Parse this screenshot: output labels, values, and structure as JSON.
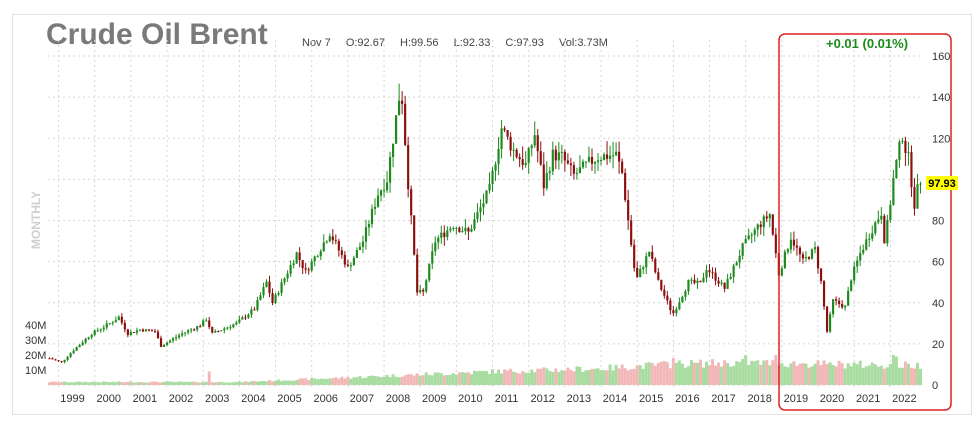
{
  "header": {
    "title": "Crude Oil Brent",
    "date": "Nov 7",
    "open": "O:92.67",
    "high": "H:99.56",
    "low": "L:92.33",
    "close": "C:97.93",
    "volume": "Vol:3.73M",
    "change": "+0.01 (0.01%)"
  },
  "period_label": "MONTHLY",
  "last_price_label": "97.93",
  "colors": {
    "up": "#1e8a1e",
    "down": "#8b0f0f",
    "volume_up": "#a8dca0",
    "volume_down": "#f2b8b8",
    "change": "#1a8a1a",
    "highlight_box": "#e02020",
    "last_price_bg": "#ffff00",
    "grid": "#d6d6d6"
  },
  "chart_data": {
    "type": "candlestick",
    "interval": "monthly",
    "ylim": [
      0,
      160
    ],
    "y_ticks": [
      0,
      20,
      40,
      60,
      80,
      100,
      120,
      140,
      160
    ],
    "volume_ticks": [
      "10M",
      "20M",
      "30M",
      "40M"
    ],
    "volume_tick_values": [
      10,
      20,
      30,
      40
    ],
    "x_ticks": [
      "1999",
      "2000",
      "2001",
      "2002",
      "2003",
      "2004",
      "2005",
      "2006",
      "2007",
      "2008",
      "2009",
      "2010",
      "2011",
      "2012",
      "2013",
      "2014",
      "2015",
      "2016",
      "2017",
      "2018",
      "2019",
      "2020",
      "2021",
      "2022"
    ],
    "x_tick_years": [
      1999,
      2000,
      2001,
      2002,
      2003,
      2004,
      2005,
      2006,
      2007,
      2008,
      2009,
      2010,
      2011,
      2012,
      2013,
      2014,
      2015,
      2016,
      2017,
      2018,
      2019,
      2020,
      2021,
      2022
    ],
    "start": "1998-10",
    "end": "2022-11",
    "close_anchors": [
      [
        "1998-10",
        13
      ],
      [
        "1999-02",
        11
      ],
      [
        "1999-06",
        17
      ],
      [
        "1999-12",
        25
      ],
      [
        "2000-06",
        30
      ],
      [
        "2000-09",
        33
      ],
      [
        "2000-12",
        25
      ],
      [
        "2001-04",
        27
      ],
      [
        "2001-09",
        26
      ],
      [
        "2001-11",
        19
      ],
      [
        "2002-06",
        25
      ],
      [
        "2002-12",
        29
      ],
      [
        "2003-02",
        32
      ],
      [
        "2003-04",
        25
      ],
      [
        "2003-12",
        30
      ],
      [
        "2004-06",
        37
      ],
      [
        "2004-10",
        50
      ],
      [
        "2004-12",
        40
      ],
      [
        "2005-08",
        64
      ],
      [
        "2005-11",
        55
      ],
      [
        "2006-07",
        74
      ],
      [
        "2006-12",
        60
      ],
      [
        "2007-01",
        57
      ],
      [
        "2007-06",
        70
      ],
      [
        "2007-11",
        93
      ],
      [
        "2008-02",
        100
      ],
      [
        "2008-06",
        140
      ],
      [
        "2008-07",
        139
      ],
      [
        "2008-09",
        98
      ],
      [
        "2008-12",
        45
      ],
      [
        "2009-02",
        45
      ],
      [
        "2009-06",
        70
      ],
      [
        "2009-12",
        78
      ],
      [
        "2010-05",
        74
      ],
      [
        "2010-12",
        95
      ],
      [
        "2011-04",
        125
      ],
      [
        "2011-08",
        114
      ],
      [
        "2011-12",
        107
      ],
      [
        "2012-03",
        122
      ],
      [
        "2012-06",
        97
      ],
      [
        "2012-09",
        112
      ],
      [
        "2012-12",
        111
      ],
      [
        "2013-04",
        102
      ],
      [
        "2013-09",
        108
      ],
      [
        "2013-12",
        111
      ],
      [
        "2014-06",
        112
      ],
      [
        "2014-08",
        103
      ],
      [
        "2014-12",
        57
      ],
      [
        "2015-01",
        52
      ],
      [
        "2015-05",
        65
      ],
      [
        "2015-08",
        50
      ],
      [
        "2015-12",
        37
      ],
      [
        "2016-01",
        35
      ],
      [
        "2016-06",
        50
      ],
      [
        "2016-10",
        49
      ],
      [
        "2016-12",
        57
      ],
      [
        "2017-06",
        47
      ],
      [
        "2017-12",
        67
      ],
      [
        "2018-05",
        77
      ],
      [
        "2018-09",
        83
      ],
      [
        "2018-12",
        54
      ],
      [
        "2019-04",
        72
      ],
      [
        "2019-08",
        60
      ],
      [
        "2019-12",
        66
      ],
      [
        "2020-02",
        50
      ],
      [
        "2020-04",
        26
      ],
      [
        "2020-06",
        41
      ],
      [
        "2020-10",
        38
      ],
      [
        "2020-12",
        52
      ],
      [
        "2021-03",
        64
      ],
      [
        "2021-07",
        76
      ],
      [
        "2021-10",
        84
      ],
      [
        "2021-11",
        71
      ],
      [
        "2021-12",
        78
      ],
      [
        "2022-02",
        100
      ],
      [
        "2022-03",
        108
      ],
      [
        "2022-05",
        122
      ],
      [
        "2022-06",
        115
      ],
      [
        "2022-07",
        110
      ],
      [
        "2022-09",
        88
      ],
      [
        "2022-10",
        95
      ],
      [
        "2022-11",
        97.93
      ]
    ],
    "volume_anchors": [
      [
        "1998-10",
        2
      ],
      [
        "2004-01",
        2
      ],
      [
        "2006-01",
        4
      ],
      [
        "2009-01",
        7
      ],
      [
        "2011-01",
        9
      ],
      [
        "2014-01",
        11
      ],
      [
        "2016-01",
        14
      ],
      [
        "2018-01",
        15
      ],
      [
        "2020-01",
        14
      ],
      [
        "2022-11",
        13
      ]
    ],
    "volume_spikes": [
      [
        "2003-03",
        9
      ],
      [
        "2016-01",
        18
      ],
      [
        "2018-01",
        20
      ],
      [
        "2018-11",
        20
      ],
      [
        "2020-04",
        14
      ],
      [
        "2022-02",
        20
      ],
      [
        "2022-03",
        19
      ]
    ]
  }
}
